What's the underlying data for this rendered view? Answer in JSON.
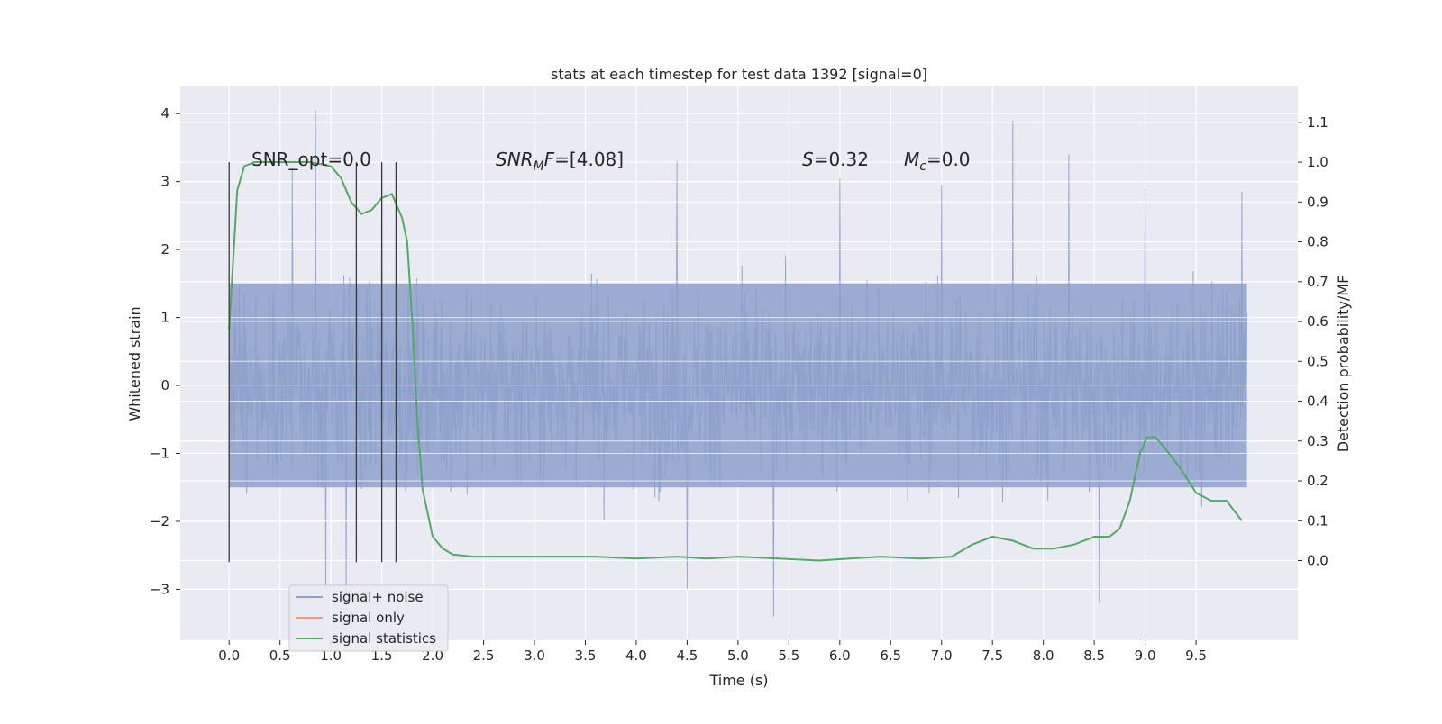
{
  "chart_data": {
    "type": "line",
    "title": "stats at each timestep for test data 1392 [signal=0]",
    "xlabel": "Time (s)",
    "ylabel_left": "Whitened strain",
    "ylabel_right": "Detection probability/MF",
    "xlim": [
      -0.48,
      10.5
    ],
    "ylim_left": [
      -3.75,
      4.4
    ],
    "ylim_right": [
      -0.2,
      1.19
    ],
    "x_ticks": [
      "0.0",
      "0.5",
      "1.0",
      "1.5",
      "2.0",
      "2.5",
      "3.0",
      "3.5",
      "4.0",
      "4.5",
      "5.0",
      "5.5",
      "6.0",
      "6.5",
      "7.0",
      "7.5",
      "8.0",
      "8.5",
      "9.0",
      "9.5"
    ],
    "y_left_ticks": [
      "4",
      "3",
      "2",
      "1",
      "0",
      "−1",
      "−2",
      "−3"
    ],
    "y_right_ticks": [
      "1.1",
      "1.0",
      "0.9",
      "0.8",
      "0.7",
      "0.6",
      "0.5",
      "0.4",
      "0.3",
      "0.2",
      "0.1",
      "0.0"
    ],
    "grid": true,
    "legend_position": "lower-left",
    "annotations": {
      "snr_opt": "SNR_opt=0.0",
      "snr_mf_var": "SNR",
      "snr_mf_sub": "M",
      "snr_mf_var2": "F",
      "snr_mf_val": "=[4.08]",
      "s_var": "S",
      "s_val": "=0.32",
      "mc_var": "M",
      "mc_sub": "c",
      "mc_val": "=0.0"
    },
    "vertical_markers_s": [
      0.0,
      1.25,
      1.5,
      1.64
    ],
    "series": [
      {
        "name": "signal+ noise",
        "color": "#8da0cb",
        "axis": "left",
        "envelope": {
          "x": [
            0.0,
            10.0
          ],
          "typical_range": [
            -1.5,
            1.5
          ],
          "peak_range": [
            -3.3,
            4.05
          ],
          "spikes": [
            {
              "x": 0.85,
              "y": 4.05
            },
            {
              "x": 7.7,
              "y": 3.9
            },
            {
              "x": 8.25,
              "y": 3.4
            },
            {
              "x": 4.4,
              "y": 3.3
            },
            {
              "x": 5.35,
              "y": -3.4
            },
            {
              "x": 0.62,
              "y": 3.2
            },
            {
              "x": 1.5,
              "y": 3.15
            },
            {
              "x": 6.0,
              "y": 3.05
            },
            {
              "x": 7.0,
              "y": 2.95
            },
            {
              "x": 8.55,
              "y": -3.2
            },
            {
              "x": 9.0,
              "y": 2.9
            },
            {
              "x": 9.95,
              "y": 2.85
            },
            {
              "x": 0.95,
              "y": -3.0
            },
            {
              "x": 1.15,
              "y": -3.05
            },
            {
              "x": 4.5,
              "y": -3.0
            }
          ]
        }
      },
      {
        "name": "signal only",
        "color": "#e5a07e",
        "axis": "left",
        "x": [
          0.0,
          10.0
        ],
        "y": [
          0.0,
          0.0
        ]
      },
      {
        "name": "signal statistics",
        "color": "#55a868",
        "axis": "right",
        "x": [
          0.0,
          0.08,
          0.15,
          0.25,
          0.4,
          0.6,
          0.8,
          1.0,
          1.1,
          1.2,
          1.3,
          1.4,
          1.5,
          1.6,
          1.7,
          1.75,
          1.8,
          1.85,
          1.9,
          2.0,
          2.1,
          2.2,
          2.4,
          2.7,
          3.0,
          3.3,
          3.6,
          4.0,
          4.4,
          4.7,
          5.0,
          5.4,
          5.8,
          6.1,
          6.4,
          6.8,
          7.1,
          7.3,
          7.5,
          7.7,
          7.9,
          8.1,
          8.3,
          8.5,
          8.65,
          8.75,
          8.85,
          8.95,
          9.02,
          9.1,
          9.2,
          9.35,
          9.5,
          9.65,
          9.8,
          9.95
        ],
        "y": [
          0.58,
          0.93,
          0.99,
          1.0,
          1.0,
          1.0,
          1.0,
          0.99,
          0.96,
          0.9,
          0.87,
          0.88,
          0.91,
          0.92,
          0.86,
          0.8,
          0.6,
          0.35,
          0.18,
          0.06,
          0.03,
          0.015,
          0.01,
          0.01,
          0.01,
          0.01,
          0.01,
          0.005,
          0.01,
          0.005,
          0.01,
          0.005,
          0.0,
          0.005,
          0.01,
          0.005,
          0.01,
          0.04,
          0.06,
          0.05,
          0.03,
          0.03,
          0.04,
          0.06,
          0.06,
          0.08,
          0.15,
          0.27,
          0.31,
          0.31,
          0.28,
          0.23,
          0.17,
          0.15,
          0.15,
          0.1
        ]
      }
    ]
  }
}
